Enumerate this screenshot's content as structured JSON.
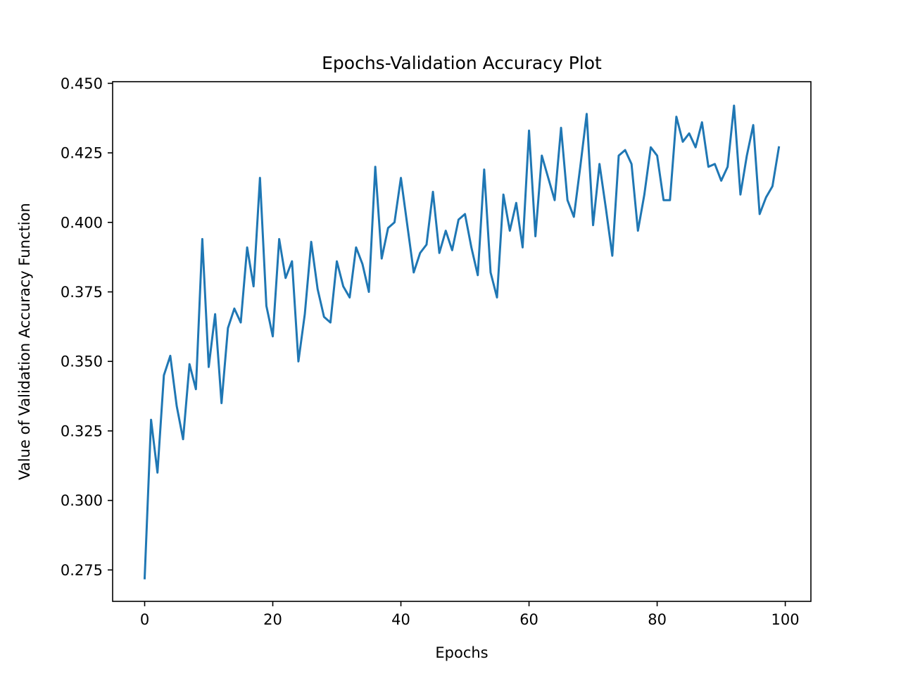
{
  "chart_data": {
    "type": "line",
    "title": "Epochs-Validation Accuracy Plot",
    "xlabel": "Epochs",
    "ylabel": "Value of Validation Accuracy Function",
    "xlim": [
      -5,
      104
    ],
    "ylim": [
      0.2637,
      0.4506
    ],
    "xticks": [
      0,
      20,
      40,
      60,
      80,
      100
    ],
    "xtick_labels": [
      "0",
      "20",
      "40",
      "60",
      "80",
      "100"
    ],
    "yticks": [
      0.275,
      0.3,
      0.325,
      0.35,
      0.375,
      0.4,
      0.425,
      0.45
    ],
    "ytick_labels": [
      "0.275",
      "0.300",
      "0.325",
      "0.350",
      "0.375",
      "0.400",
      "0.425",
      "0.450"
    ],
    "grid": false,
    "line_color": "#1f77b4",
    "series": [
      {
        "x": [
          0,
          1,
          2,
          3,
          4,
          5,
          6,
          7,
          8,
          9,
          10,
          11,
          12,
          13,
          14,
          15,
          16,
          17,
          18,
          19,
          20,
          21,
          22,
          23,
          24,
          25,
          26,
          27,
          28,
          29,
          30,
          31,
          32,
          33,
          34,
          35,
          36,
          37,
          38,
          39,
          40,
          41,
          42,
          43,
          44,
          45,
          46,
          47,
          48,
          49,
          50,
          51,
          52,
          53,
          54,
          55,
          56,
          57,
          58,
          59,
          60,
          61,
          62,
          63,
          64,
          65,
          66,
          67,
          68,
          69,
          70,
          71,
          72,
          73,
          74,
          75,
          76,
          77,
          78,
          79,
          80,
          81,
          82,
          83,
          84,
          85,
          86,
          87,
          88,
          89,
          90,
          91,
          92,
          93,
          94,
          95,
          96,
          97,
          98,
          99
        ],
        "values": [
          0.272,
          0.329,
          0.31,
          0.345,
          0.352,
          0.334,
          0.322,
          0.349,
          0.34,
          0.394,
          0.348,
          0.367,
          0.335,
          0.362,
          0.369,
          0.364,
          0.391,
          0.377,
          0.416,
          0.37,
          0.359,
          0.394,
          0.38,
          0.386,
          0.35,
          0.367,
          0.393,
          0.376,
          0.366,
          0.364,
          0.386,
          0.377,
          0.373,
          0.391,
          0.385,
          0.375,
          0.42,
          0.387,
          0.398,
          0.4,
          0.416,
          0.399,
          0.382,
          0.389,
          0.392,
          0.411,
          0.389,
          0.397,
          0.39,
          0.401,
          0.403,
          0.391,
          0.381,
          0.419,
          0.382,
          0.373,
          0.41,
          0.397,
          0.407,
          0.391,
          0.433,
          0.395,
          0.424,
          0.416,
          0.408,
          0.434,
          0.408,
          0.402,
          0.42,
          0.439,
          0.399,
          0.421,
          0.405,
          0.388,
          0.424,
          0.426,
          0.421,
          0.397,
          0.41,
          0.427,
          0.424,
          0.408,
          0.408,
          0.438,
          0.429,
          0.432,
          0.427,
          0.436,
          0.42,
          0.421,
          0.415,
          0.42,
          0.442,
          0.41,
          0.424,
          0.435,
          0.403,
          0.409,
          0.413,
          0.427
        ]
      }
    ]
  }
}
